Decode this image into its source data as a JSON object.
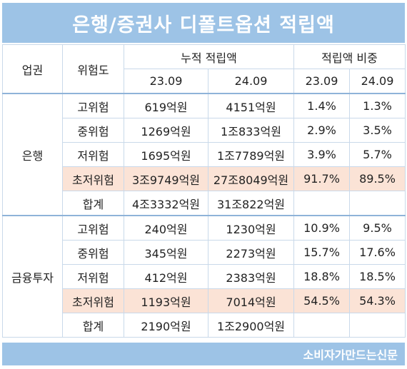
{
  "title": "은행/증권사 디폴트옵션 적립액",
  "headers": {
    "sector": "업권",
    "risk": "위험도",
    "cumulative": "누적 적립액",
    "ratio": "적립액 비중",
    "period1": "23.09",
    "period2": "24.09"
  },
  "sections": [
    {
      "name": "은행",
      "rows": [
        {
          "risk": "고위험",
          "c1": "619억원",
          "c2": "4151억원",
          "r1": "1.4%",
          "r2": "1.3%"
        },
        {
          "risk": "중위험",
          "c1": "1269억원",
          "c2": "1조833억원",
          "r1": "2.9%",
          "r2": "3.5%"
        },
        {
          "risk": "저위험",
          "c1": "1695억원",
          "c2": "1조7789억원",
          "r1": "3.9%",
          "r2": "5.7%"
        },
        {
          "risk": "초저위험",
          "c1": "3조9749억원",
          "c2": "27조8049억원",
          "r1": "91.7%",
          "r2": "89.5%"
        },
        {
          "risk": "합계",
          "c1": "4조3332억원",
          "c2": "31조822억원",
          "r1": "",
          "r2": ""
        }
      ]
    },
    {
      "name": "금융투자",
      "rows": [
        {
          "risk": "고위험",
          "c1": "240억원",
          "c2": "1230억원",
          "r1": "10.9%",
          "r2": "9.5%"
        },
        {
          "risk": "중위험",
          "c1": "345억원",
          "c2": "2273억원",
          "r1": "15.7%",
          "r2": "17.6%"
        },
        {
          "risk": "저위험",
          "c1": "412억원",
          "c2": "2383억원",
          "r1": "18.8%",
          "r2": "18.5%"
        },
        {
          "risk": "초저위험",
          "c1": "1193억원",
          "c2": "7014억원",
          "r1": "54.5%",
          "r2": "54.3%"
        },
        {
          "risk": "합계",
          "c1": "2190억원",
          "c2": "1조2900억원",
          "r1": "",
          "r2": ""
        }
      ]
    }
  ],
  "highlight_color": "#fbe3d6",
  "accent_color": "#9dc3e6",
  "footer": "소비자가만드는신문"
}
